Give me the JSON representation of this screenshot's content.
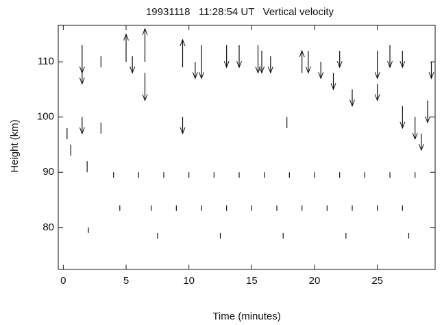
{
  "chart_data": {
    "type": "quiver",
    "title": "19931118   11:28:54 UT   Vertical velocity",
    "x_label": "Time (minutes)",
    "y_label": "Height (km)",
    "xlim": [
      -0.4,
      29.6
    ],
    "ylim": [
      72.4,
      116.6
    ],
    "xticks": [
      0,
      5,
      10,
      15,
      20,
      25
    ],
    "yticks": [
      80,
      90,
      100,
      110
    ],
    "color": "#111",
    "x": [
      1.5,
      1.5,
      0.3,
      0.6,
      1.5,
      1.9,
      3,
      3,
      5,
      5.5,
      6.5,
      6.5,
      9.5,
      9.5,
      10.5,
      11,
      13,
      14,
      15.5,
      15.8,
      16.5,
      17.8,
      19,
      19.5,
      20.5,
      21.5,
      22,
      23,
      25,
      25,
      26,
      27,
      27,
      28,
      28.5,
      29,
      29.3,
      4,
      6,
      8,
      10,
      12,
      14,
      16,
      18,
      20,
      22,
      24,
      26,
      28,
      4.5,
      7,
      9,
      11,
      13,
      15,
      17,
      19,
      21,
      23,
      25,
      27,
      2,
      7.5,
      12.5,
      17.5,
      22.5,
      27.5
    ],
    "y": [
      113,
      109,
      98,
      95,
      100,
      92,
      111,
      99,
      110,
      111,
      110,
      108,
      109,
      100,
      110,
      113,
      113,
      113,
      113,
      112,
      111,
      100,
      108,
      112,
      110,
      108,
      112,
      105,
      112,
      106,
      113,
      112,
      102,
      100,
      97,
      103,
      110,
      90,
      90,
      90,
      90,
      90,
      90,
      90,
      90,
      90,
      90,
      90,
      90,
      90,
      84,
      84,
      84,
      84,
      84,
      84,
      84,
      84,
      84,
      84,
      84,
      84,
      80,
      79,
      79,
      79,
      79,
      79
    ],
    "dy": [
      -5,
      -3,
      -2,
      -2,
      -3,
      -2,
      -2,
      -2,
      5,
      -3,
      6,
      -5,
      5,
      -3,
      -3,
      -6,
      -4,
      -4,
      -5,
      -4,
      -3,
      -2,
      4,
      -4,
      -3,
      -3,
      -3,
      -3,
      -5,
      -3,
      -4,
      -3,
      -4,
      -4,
      -3,
      -4,
      -3,
      -1,
      -1,
      -1,
      -1,
      -1,
      -1,
      -1,
      -1,
      -1,
      -1,
      -1,
      -1,
      -1,
      -1,
      -1,
      -1,
      -1,
      -1,
      -1,
      -1,
      -1,
      -1,
      -1,
      -1,
      -1,
      -1,
      -1,
      -1,
      -1,
      -1,
      -1
    ]
  }
}
